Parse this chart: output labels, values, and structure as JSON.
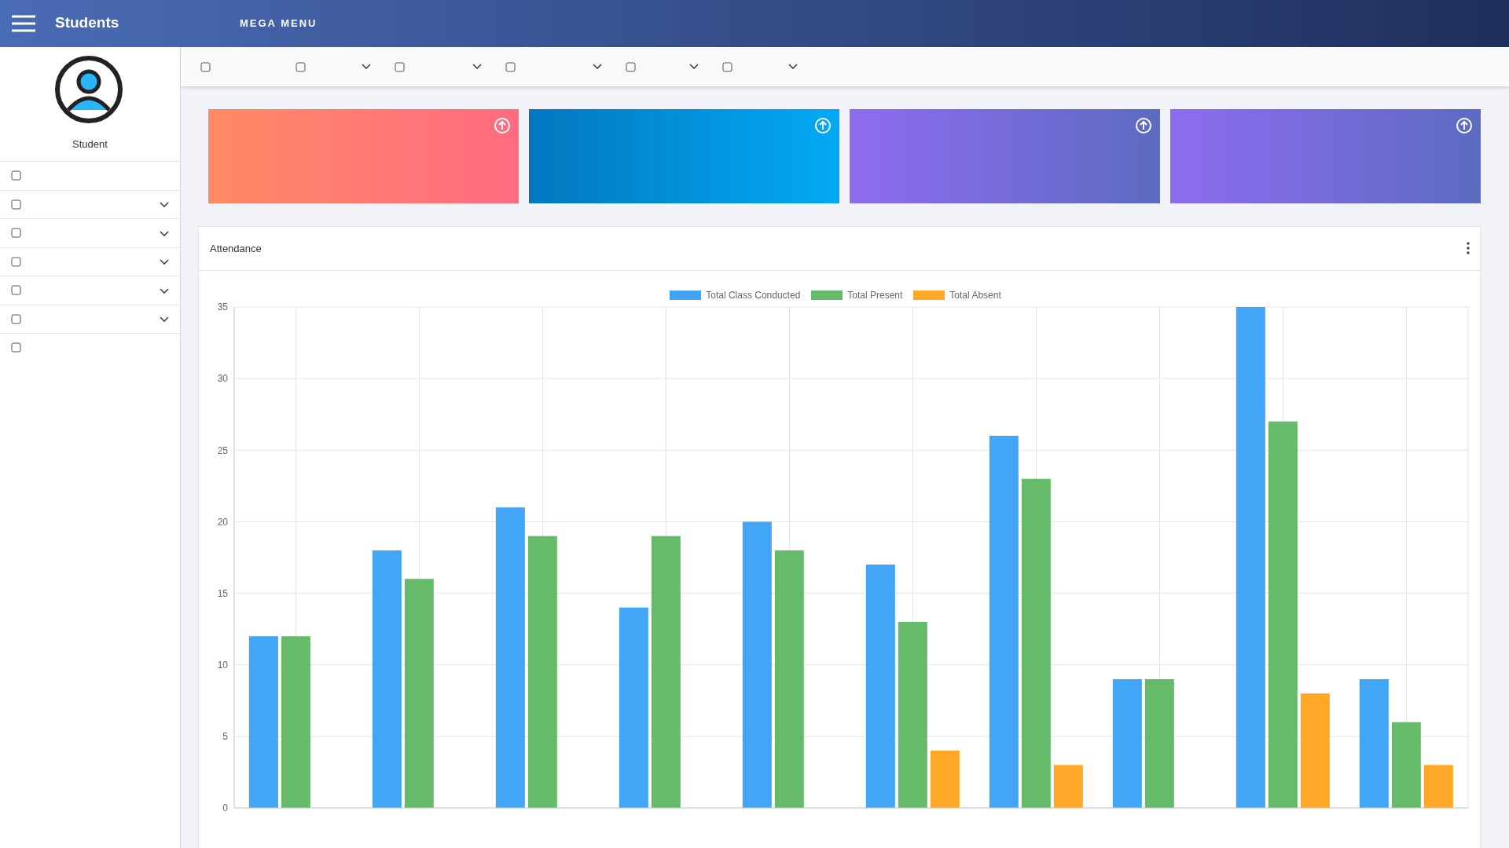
{
  "chart_data": {
    "type": "bar",
    "title": "Attendance",
    "annotations": [
      "Students",
      "MEGA MENU",
      "Student"
    ],
    "categories": [
      null,
      null,
      null,
      null,
      null,
      null,
      null,
      null,
      null,
      null
    ],
    "series": [
      {
        "name": "Total Class Conducted",
        "color": "#42a5f5",
        "values": [
          12,
          18,
          21,
          14,
          20,
          17,
          26,
          9,
          35,
          9
        ]
      },
      {
        "name": "Total Present",
        "color": "#66bb6a",
        "values": [
          12,
          16,
          19,
          19,
          18,
          13,
          23,
          9,
          27,
          6
        ]
      },
      {
        "name": "Total Absent",
        "color": "#ffa726",
        "values": [
          0,
          0,
          0,
          0,
          0,
          4,
          3,
          0,
          8,
          3
        ]
      }
    ],
    "ylim": [
      0,
      35
    ],
    "yticks": [
      0,
      5,
      10,
      15,
      20,
      25,
      30,
      35
    ],
    "grid": true,
    "legend": "top",
    "tick_labels": "y"
  }
}
